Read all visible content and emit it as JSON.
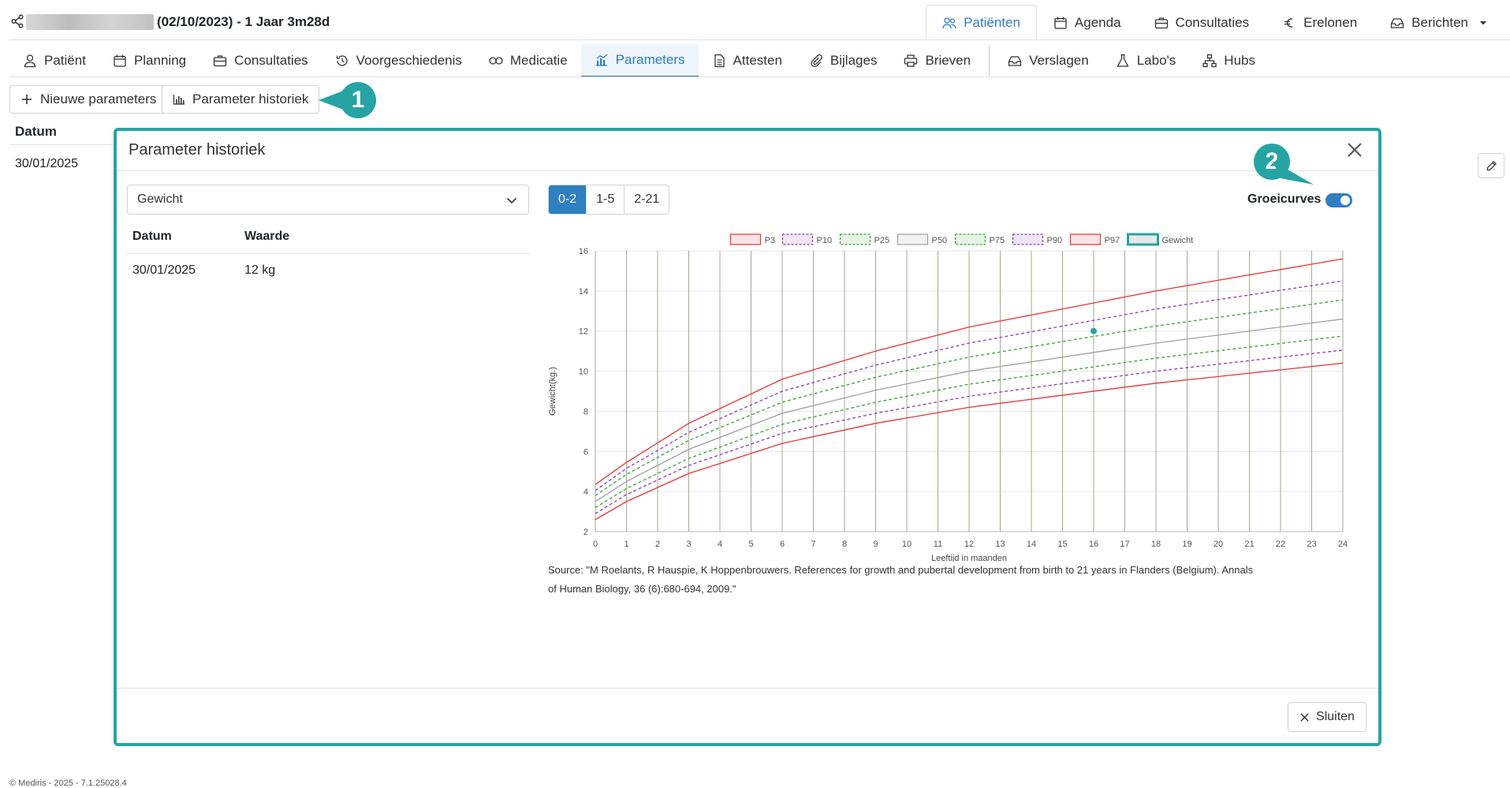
{
  "header": {
    "patient_info": "(02/10/2023) - 1 Jaar 3m28d",
    "nav": [
      {
        "label": "Patiënten",
        "icon": "users-icon",
        "active": true
      },
      {
        "label": "Agenda",
        "icon": "calendar-icon"
      },
      {
        "label": "Consultaties",
        "icon": "briefcase-icon"
      },
      {
        "label": "Erelonen",
        "icon": "euro-icon"
      },
      {
        "label": "Berichten",
        "icon": "inbox-icon"
      }
    ]
  },
  "tabs": [
    {
      "label": "Patiënt",
      "icon": "person-icon"
    },
    {
      "label": "Planning",
      "icon": "calendar-icon"
    },
    {
      "label": "Consultaties",
      "icon": "briefcase-icon"
    },
    {
      "label": "Voorgeschiedenis",
      "icon": "history-icon"
    },
    {
      "label": "Medicatie",
      "icon": "pills-icon"
    },
    {
      "label": "Parameters",
      "icon": "chart-icon",
      "active": true
    },
    {
      "label": "Attesten",
      "icon": "document-icon"
    },
    {
      "label": "Bijlages",
      "icon": "paperclip-icon"
    },
    {
      "label": "Brieven",
      "icon": "printer-icon"
    },
    {
      "label": "Verslagen",
      "icon": "inbox-icon"
    },
    {
      "label": "Labo's",
      "icon": "flask-icon"
    },
    {
      "label": "Hubs",
      "icon": "network-icon"
    }
  ],
  "toolbar": {
    "new_label": "Nieuwe parameters",
    "history_label": "Parameter historiek"
  },
  "callouts": {
    "one": "1",
    "two": "2"
  },
  "background_table": {
    "header": "Datum",
    "value": "30/01/2025"
  },
  "modal": {
    "title": "Parameter historiek",
    "select_value": "Gewicht",
    "table": {
      "headers": [
        "Datum",
        "Waarde"
      ],
      "rows": [
        [
          "30/01/2025",
          "12 kg"
        ]
      ]
    },
    "ranges": [
      "0-2",
      "1-5",
      "2-21"
    ],
    "active_range": "0-2",
    "toggle_label": "Groeicurves",
    "toggle_on": true,
    "source": "Source: \"M Roelants, R Hauspie, K Hoppenbrouwers. References for growth and pubertal development from birth to 21 years in Flanders (Belgium). Annals of Human Biology, 36 (6):680-694, 2009.\"",
    "close_label": "Sluiten"
  },
  "footer": "© Mediris - 2025 - 7.1.25028.4",
  "colors": {
    "accent": "#26a4a4",
    "primary": "#2f7fc1",
    "p3_p97": "#e83434",
    "p10_p90": "#8a3fb5",
    "p25_p75": "#3aa33a",
    "p50": "#a0a0a0"
  },
  "chart_data": {
    "type": "line",
    "xlabel": "Leeftijd in maanden",
    "ylabel": "Gewicht(kg.)",
    "xlim": [
      0,
      24
    ],
    "ylim": [
      2,
      16
    ],
    "x_ticks": [
      0,
      1,
      2,
      3,
      4,
      5,
      6,
      7,
      8,
      9,
      10,
      11,
      12,
      13,
      14,
      15,
      16,
      17,
      18,
      19,
      20,
      21,
      22,
      23,
      24
    ],
    "y_ticks": [
      2,
      4,
      6,
      8,
      10,
      12,
      14,
      16
    ],
    "x": [
      0,
      1,
      3,
      6,
      9,
      12,
      18,
      24
    ],
    "series": [
      {
        "name": "P3",
        "style": "solid",
        "color": "#e83434",
        "values": [
          2.6,
          3.5,
          4.9,
          6.4,
          7.4,
          8.2,
          9.4,
          10.4
        ]
      },
      {
        "name": "P10",
        "style": "dashed",
        "color": "#8a3fb5",
        "values": [
          2.9,
          3.85,
          5.3,
          6.9,
          7.9,
          8.75,
          10.0,
          11.05
        ]
      },
      {
        "name": "P25",
        "style": "dashed",
        "color": "#3aa33a",
        "values": [
          3.2,
          4.15,
          5.65,
          7.35,
          8.45,
          9.35,
          10.65,
          11.75
        ]
      },
      {
        "name": "P50",
        "style": "solid",
        "color": "#a0a0a0",
        "values": [
          3.5,
          4.5,
          6.1,
          7.9,
          9.05,
          10.0,
          11.4,
          12.6
        ]
      },
      {
        "name": "P75",
        "style": "dashed",
        "color": "#3aa33a",
        "values": [
          3.8,
          4.85,
          6.55,
          8.45,
          9.7,
          10.7,
          12.25,
          13.55
        ]
      },
      {
        "name": "P90",
        "style": "dashed",
        "color": "#8a3fb5",
        "values": [
          4.05,
          5.15,
          6.95,
          9.0,
          10.3,
          11.4,
          13.1,
          14.5
        ]
      },
      {
        "name": "P97",
        "style": "solid",
        "color": "#e83434",
        "values": [
          4.35,
          5.45,
          7.4,
          9.6,
          11.0,
          12.2,
          14.0,
          15.6
        ]
      }
    ],
    "points": {
      "name": "Gewicht",
      "color": "#26a4a4",
      "x": [
        16
      ],
      "y": [
        12
      ]
    },
    "legend_position": "top",
    "grid": "vertical"
  }
}
